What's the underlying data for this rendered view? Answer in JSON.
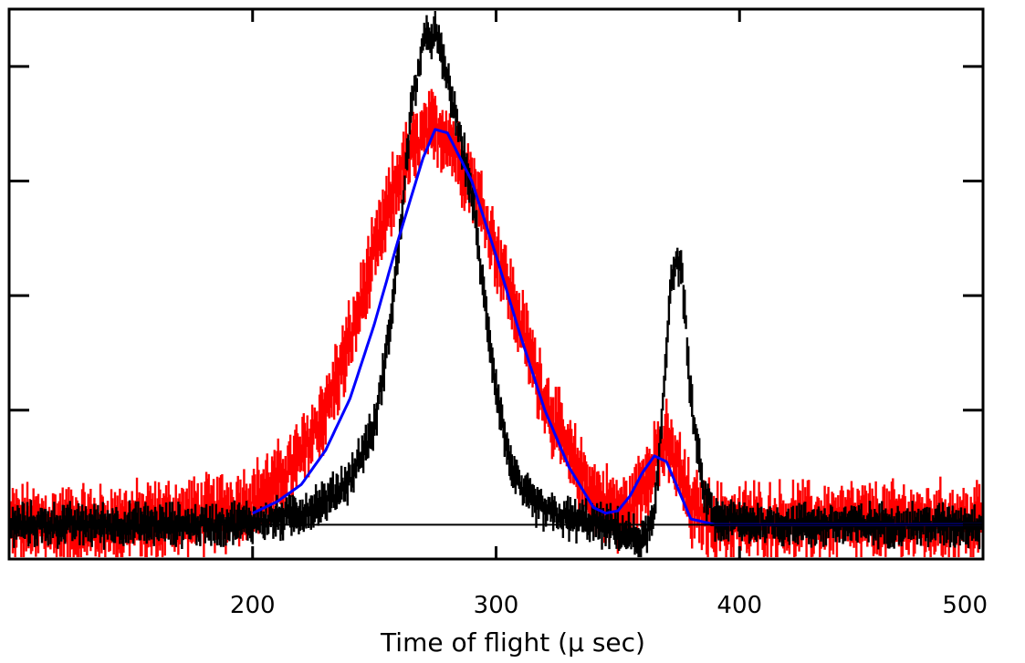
{
  "chart_data": {
    "type": "line",
    "title": "",
    "xlabel": "Time of flight (μ sec)",
    "ylabel": "",
    "xlim": [
      100,
      500
    ],
    "ylim": [
      -0.3,
      4.5
    ],
    "x_ticks": [
      200,
      300,
      400,
      500
    ],
    "y_ticks": [
      0,
      1,
      2,
      3,
      4
    ],
    "y_tick_labels_shown": false,
    "grid": false,
    "legend": "none",
    "baseline": 0,
    "colors": {
      "red_series": "#ff0000",
      "black_series": "#000000",
      "fit": "#0000ff",
      "frame": "#000000"
    },
    "series": [
      {
        "style": "error-bars",
        "color": "#ff0000",
        "x": [
          100,
          110,
          120,
          130,
          140,
          150,
          160,
          170,
          180,
          190,
          200,
          210,
          220,
          230,
          240,
          250,
          260,
          270,
          275,
          280,
          290,
          300,
          310,
          320,
          330,
          340,
          350,
          355,
          360,
          365,
          370,
          375,
          380,
          390,
          400,
          420,
          440,
          460,
          480,
          500
        ],
        "y": [
          0,
          0,
          0,
          0,
          0,
          0.02,
          0.03,
          0.05,
          0.08,
          0.13,
          0.2,
          0.35,
          0.6,
          1.0,
          1.6,
          2.35,
          3.05,
          3.4,
          3.45,
          3.4,
          3.0,
          2.4,
          1.75,
          1.1,
          0.6,
          0.25,
          0.1,
          0.12,
          0.35,
          0.6,
          0.7,
          0.5,
          0.15,
          0.02,
          0.02,
          0.02,
          0.03,
          0.02,
          0.03,
          0.02
        ],
        "error": 0.22
      },
      {
        "style": "error-bars",
        "color": "#000000",
        "x": [
          100,
          120,
          140,
          160,
          180,
          200,
          210,
          220,
          230,
          240,
          250,
          255,
          260,
          265,
          270,
          275,
          280,
          285,
          290,
          295,
          300,
          305,
          310,
          320,
          330,
          340,
          350,
          355,
          360,
          365,
          368,
          372,
          376,
          380,
          385,
          390,
          400,
          420,
          440,
          460,
          480,
          500
        ],
        "y": [
          0,
          0,
          0,
          0,
          0,
          0.02,
          0.05,
          0.1,
          0.2,
          0.4,
          0.85,
          1.5,
          2.4,
          3.6,
          4.2,
          4.3,
          3.9,
          3.4,
          2.9,
          2.0,
          1.2,
          0.6,
          0.3,
          0.12,
          0.05,
          0.02,
          -0.05,
          -0.1,
          -0.15,
          0.05,
          0.9,
          2.2,
          2.3,
          1.1,
          0.3,
          0.05,
          0.02,
          0,
          0,
          0,
          0,
          0
        ],
        "error": 0.12
      },
      {
        "style": "line",
        "color": "#0000ff",
        "x": [
          200,
          210,
          220,
          230,
          240,
          250,
          260,
          270,
          275,
          280,
          290,
          300,
          310,
          320,
          330,
          340,
          345,
          350,
          355,
          360,
          365,
          370,
          375,
          380,
          390,
          400,
          500
        ],
        "y": [
          0.1,
          0.2,
          0.35,
          0.65,
          1.1,
          1.75,
          2.5,
          3.2,
          3.45,
          3.42,
          3.0,
          2.35,
          1.65,
          1.0,
          0.5,
          0.15,
          0.1,
          0.12,
          0.25,
          0.45,
          0.6,
          0.55,
          0.3,
          0.05,
          0,
          0,
          0
        ]
      }
    ]
  }
}
